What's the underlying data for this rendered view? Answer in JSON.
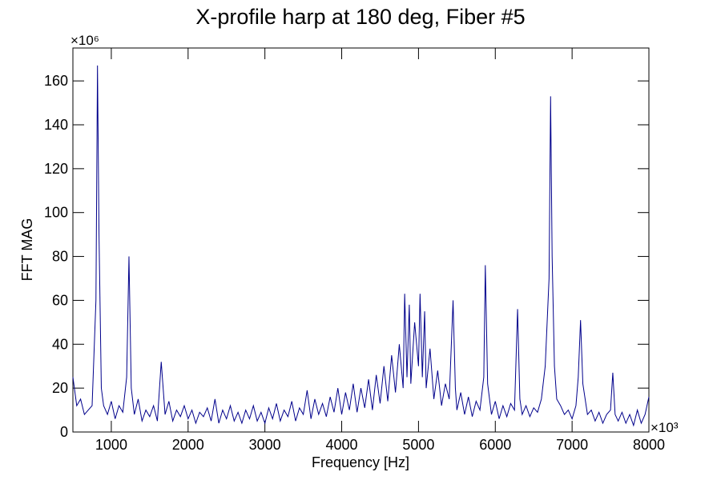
{
  "chart_data": {
    "type": "line",
    "title": "X-profile harp at 180 deg, Fiber #5",
    "x_label": "Frequency [Hz]",
    "y_label": "FFT MAG",
    "x_exponent": "×10³",
    "y_exponent": "×10⁶",
    "color": "#00008b",
    "xlim": [
      500,
      8000
    ],
    "ylim": [
      0,
      175
    ],
    "xticks": [
      1000,
      2000,
      3000,
      4000,
      5000,
      6000,
      7000,
      8000
    ],
    "yticks": [
      0,
      20,
      40,
      60,
      80,
      100,
      120,
      140,
      160
    ],
    "x": [
      500,
      550,
      600,
      650,
      700,
      750,
      800,
      820,
      840,
      870,
      900,
      950,
      1000,
      1050,
      1100,
      1150,
      1200,
      1230,
      1260,
      1300,
      1350,
      1400,
      1450,
      1500,
      1550,
      1600,
      1650,
      1700,
      1750,
      1800,
      1850,
      1900,
      1950,
      2000,
      2050,
      2100,
      2150,
      2200,
      2250,
      2300,
      2350,
      2400,
      2450,
      2500,
      2550,
      2600,
      2650,
      2700,
      2750,
      2800,
      2850,
      2900,
      2950,
      3000,
      3050,
      3100,
      3150,
      3200,
      3250,
      3300,
      3350,
      3400,
      3450,
      3500,
      3550,
      3600,
      3650,
      3700,
      3750,
      3800,
      3850,
      3900,
      3950,
      4000,
      4050,
      4100,
      4150,
      4200,
      4250,
      4300,
      4350,
      4400,
      4450,
      4500,
      4550,
      4600,
      4650,
      4700,
      4750,
      4800,
      4820,
      4850,
      4880,
      4900,
      4950,
      5000,
      5020,
      5050,
      5080,
      5100,
      5150,
      5200,
      5250,
      5300,
      5350,
      5400,
      5450,
      5480,
      5500,
      5550,
      5600,
      5650,
      5700,
      5750,
      5800,
      5850,
      5870,
      5900,
      5950,
      6000,
      6050,
      6100,
      6150,
      6200,
      6250,
      6290,
      6320,
      6350,
      6400,
      6450,
      6500,
      6550,
      6600,
      6650,
      6700,
      6720,
      6740,
      6770,
      6800,
      6850,
      6900,
      6950,
      7000,
      7050,
      7080,
      7110,
      7140,
      7200,
      7250,
      7300,
      7350,
      7400,
      7450,
      7500,
      7530,
      7560,
      7600,
      7650,
      7700,
      7750,
      7800,
      7850,
      7900,
      7950,
      8000
    ],
    "values": [
      25,
      12,
      15,
      8,
      10,
      12,
      60,
      167,
      90,
      20,
      12,
      8,
      14,
      6,
      12,
      9,
      25,
      80,
      20,
      8,
      15,
      5,
      10,
      7,
      12,
      5,
      32,
      8,
      14,
      5,
      10,
      7,
      12,
      6,
      10,
      4,
      9,
      7,
      11,
      5,
      15,
      4,
      10,
      6,
      12,
      5,
      9,
      4,
      10,
      6,
      12,
      5,
      9,
      4,
      11,
      6,
      13,
      5,
      10,
      7,
      14,
      5,
      11,
      8,
      19,
      6,
      15,
      8,
      13,
      7,
      16,
      9,
      20,
      8,
      18,
      10,
      22,
      9,
      20,
      11,
      24,
      10,
      26,
      13,
      30,
      14,
      35,
      18,
      40,
      20,
      63,
      25,
      58,
      22,
      50,
      30,
      63,
      25,
      55,
      20,
      38,
      15,
      28,
      12,
      22,
      15,
      60,
      20,
      10,
      18,
      8,
      16,
      7,
      14,
      10,
      25,
      76,
      22,
      8,
      14,
      6,
      12,
      7,
      13,
      10,
      56,
      15,
      8,
      12,
      7,
      11,
      9,
      15,
      30,
      70,
      153,
      80,
      30,
      15,
      12,
      8,
      10,
      6,
      12,
      25,
      51,
      22,
      8,
      10,
      5,
      9,
      4,
      8,
      10,
      27,
      8,
      5,
      9,
      4,
      8,
      3,
      10,
      4,
      8,
      16
    ]
  }
}
